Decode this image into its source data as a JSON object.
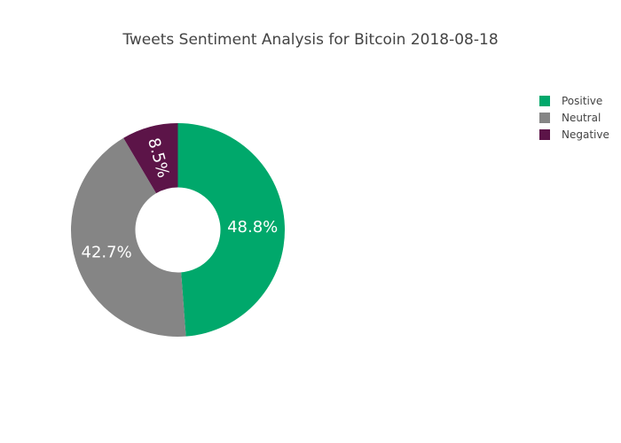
{
  "chart_data": {
    "type": "pie",
    "hole": true,
    "title": "Tweets Sentiment Analysis for Bitcoin 2018-08-18",
    "slices": [
      {
        "label": "Positive",
        "value": 48.8,
        "display": "48.8%",
        "color": "#00a86b"
      },
      {
        "label": "Neutral",
        "value": 42.7,
        "display": "42.7%",
        "color": "#858585"
      },
      {
        "label": "Negative",
        "value": 8.5,
        "display": "8.5%",
        "color": "#5c1448"
      }
    ],
    "legend_position": "top-right"
  }
}
